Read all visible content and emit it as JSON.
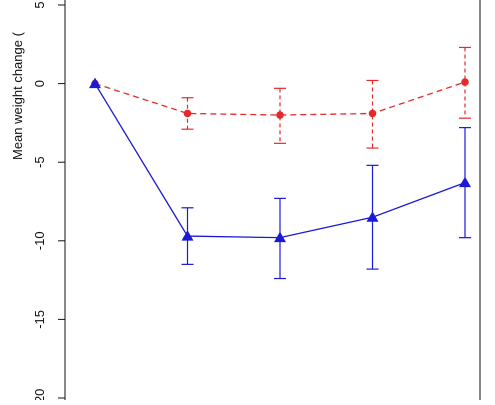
{
  "chart_data": {
    "type": "line",
    "ylabel": "Mean weight change (",
    "ylim": [
      -20,
      5
    ],
    "yticks": [
      5,
      0,
      -5,
      -10,
      -15,
      -20
    ],
    "ytick_labels": [
      "5",
      "0",
      "-5",
      "-10",
      "-15",
      "-20"
    ],
    "x": [
      0,
      1,
      2,
      3,
      4
    ],
    "grid": false,
    "series": [
      {
        "color": "#e32b2b",
        "line_style": "dashed",
        "marker": "circle",
        "values": [
          0,
          -1.9,
          -2.0,
          -1.9,
          0.1
        ],
        "error_low": [
          null,
          -2.9,
          -3.8,
          -4.1,
          -2.2
        ],
        "error_high": [
          null,
          -0.9,
          -0.3,
          0.2,
          2.3
        ]
      },
      {
        "color": "#1a1ad6",
        "line_style": "solid",
        "marker": "triangle",
        "values": [
          0,
          -9.7,
          -9.8,
          -8.5,
          -6.3
        ],
        "error_low": [
          null,
          -11.5,
          -12.4,
          -11.8,
          -9.8
        ],
        "error_high": [
          null,
          -7.9,
          -7.3,
          -5.2,
          -2.8
        ]
      }
    ]
  }
}
